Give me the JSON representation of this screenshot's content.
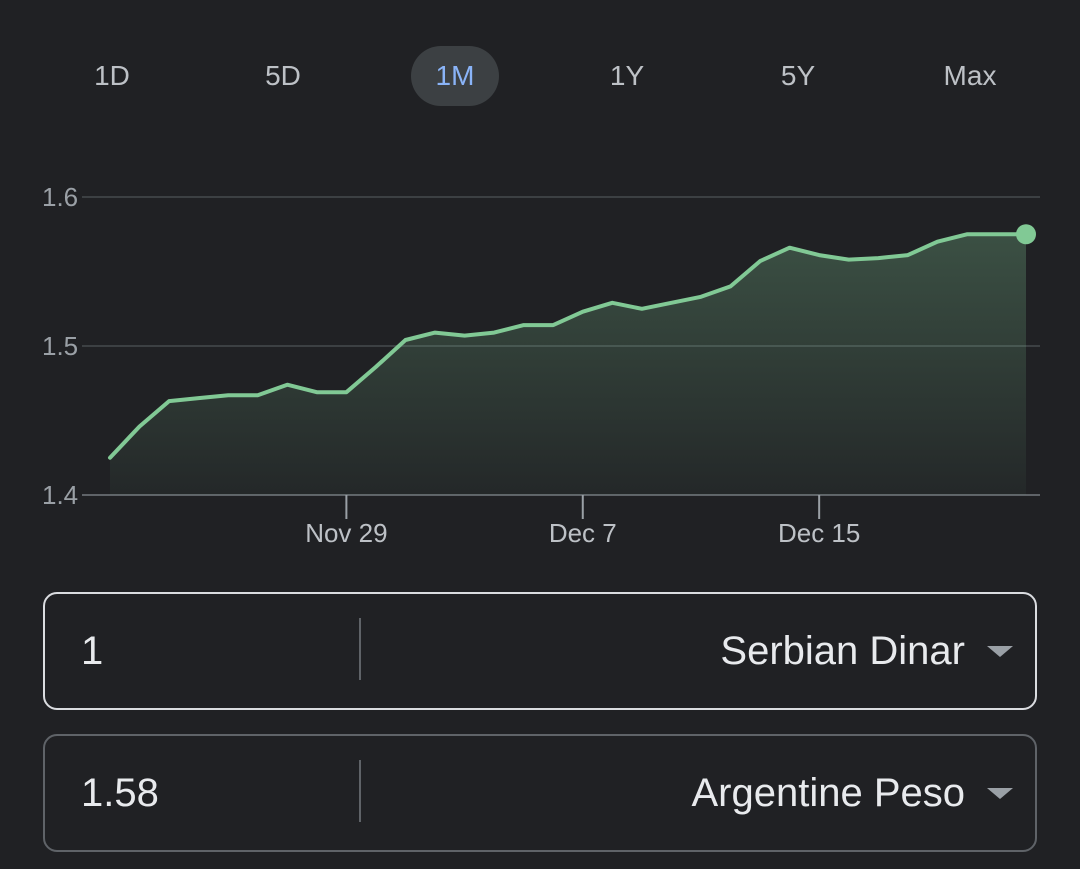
{
  "tabs": [
    {
      "label": "1D",
      "active": false
    },
    {
      "label": "5D",
      "active": false
    },
    {
      "label": "1M",
      "active": true
    },
    {
      "label": "1Y",
      "active": false
    },
    {
      "label": "5Y",
      "active": false
    },
    {
      "label": "Max",
      "active": false
    }
  ],
  "colors": {
    "background": "#202124",
    "line": "#81c995",
    "active_tab_text": "#8ab4f8",
    "active_tab_bg": "#3c4043"
  },
  "chart_data": {
    "type": "area",
    "x": [
      "Nov 21",
      "Nov 22",
      "Nov 23",
      "Nov 24",
      "Nov 25",
      "Nov 26",
      "Nov 27",
      "Nov 28",
      "Nov 29",
      "Nov 30",
      "Dec 1",
      "Dec 2",
      "Dec 3",
      "Dec 4",
      "Dec 5",
      "Dec 6",
      "Dec 7",
      "Dec 8",
      "Dec 9",
      "Dec 10",
      "Dec 11",
      "Dec 12",
      "Dec 13",
      "Dec 14",
      "Dec 15",
      "Dec 16",
      "Dec 17",
      "Dec 18",
      "Dec 19",
      "Dec 20",
      "Dec 21",
      "Dec 22"
    ],
    "values": [
      1.425,
      1.446,
      1.463,
      1.465,
      1.467,
      1.467,
      1.474,
      1.469,
      1.469,
      1.486,
      1.504,
      1.509,
      1.507,
      1.509,
      1.514,
      1.514,
      1.523,
      1.529,
      1.525,
      1.529,
      1.533,
      1.54,
      1.557,
      1.566,
      1.561,
      1.558,
      1.559,
      1.561,
      1.57,
      1.575,
      1.575,
      1.575
    ],
    "x_ticks": [
      "Nov 29",
      "Dec 7",
      "Dec 15"
    ],
    "y_ticks": [
      "1.4",
      "1.5",
      "1.6"
    ],
    "ylim": [
      1.4,
      1.6
    ],
    "grid": true
  },
  "converter": {
    "from": {
      "amount": "1",
      "currency": "Serbian Dinar"
    },
    "to": {
      "amount": "1.58",
      "currency": "Argentine Peso"
    }
  }
}
